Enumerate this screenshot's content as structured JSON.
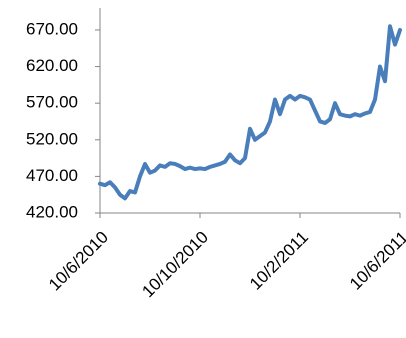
{
  "chart_data": {
    "type": "line",
    "categories": [
      "10/6/2010",
      null,
      null,
      null,
      null,
      null,
      null,
      null,
      null,
      null,
      null,
      null,
      null,
      null,
      null,
      null,
      null,
      null,
      null,
      null,
      "10/10/2010",
      null,
      null,
      null,
      null,
      null,
      null,
      null,
      null,
      null,
      null,
      null,
      null,
      null,
      null,
      null,
      null,
      null,
      null,
      null,
      "10/2/2011",
      null,
      null,
      null,
      null,
      null,
      null,
      null,
      null,
      null,
      null,
      null,
      null,
      null,
      null,
      null,
      null,
      null,
      null,
      null,
      "10/6/2011"
    ],
    "series": [
      {
        "color": "#4a7ebb",
        "values": [
          460,
          458,
          462,
          455,
          445,
          440,
          450,
          448,
          470,
          487,
          475,
          478,
          485,
          483,
          488,
          487,
          484,
          480,
          482,
          480,
          481,
          480,
          483,
          485,
          487,
          490,
          500,
          492,
          488,
          495,
          535,
          520,
          525,
          530,
          545,
          575,
          555,
          575,
          580,
          575,
          580,
          578,
          575,
          560,
          545,
          543,
          548,
          570,
          555,
          553,
          552,
          555,
          553,
          556,
          558,
          575,
          620,
          600,
          675,
          650,
          670
        ]
      }
    ],
    "ylim": [
      420,
      700
    ],
    "yticks": [
      {
        "value": 420,
        "label": "420.00"
      },
      {
        "value": 470,
        "label": "470.00"
      },
      {
        "value": 520,
        "label": "520.00"
      },
      {
        "value": 570,
        "label": "570.00"
      },
      {
        "value": 620,
        "label": "620.00"
      },
      {
        "value": 670,
        "label": "670.00"
      }
    ],
    "grid": false
  }
}
